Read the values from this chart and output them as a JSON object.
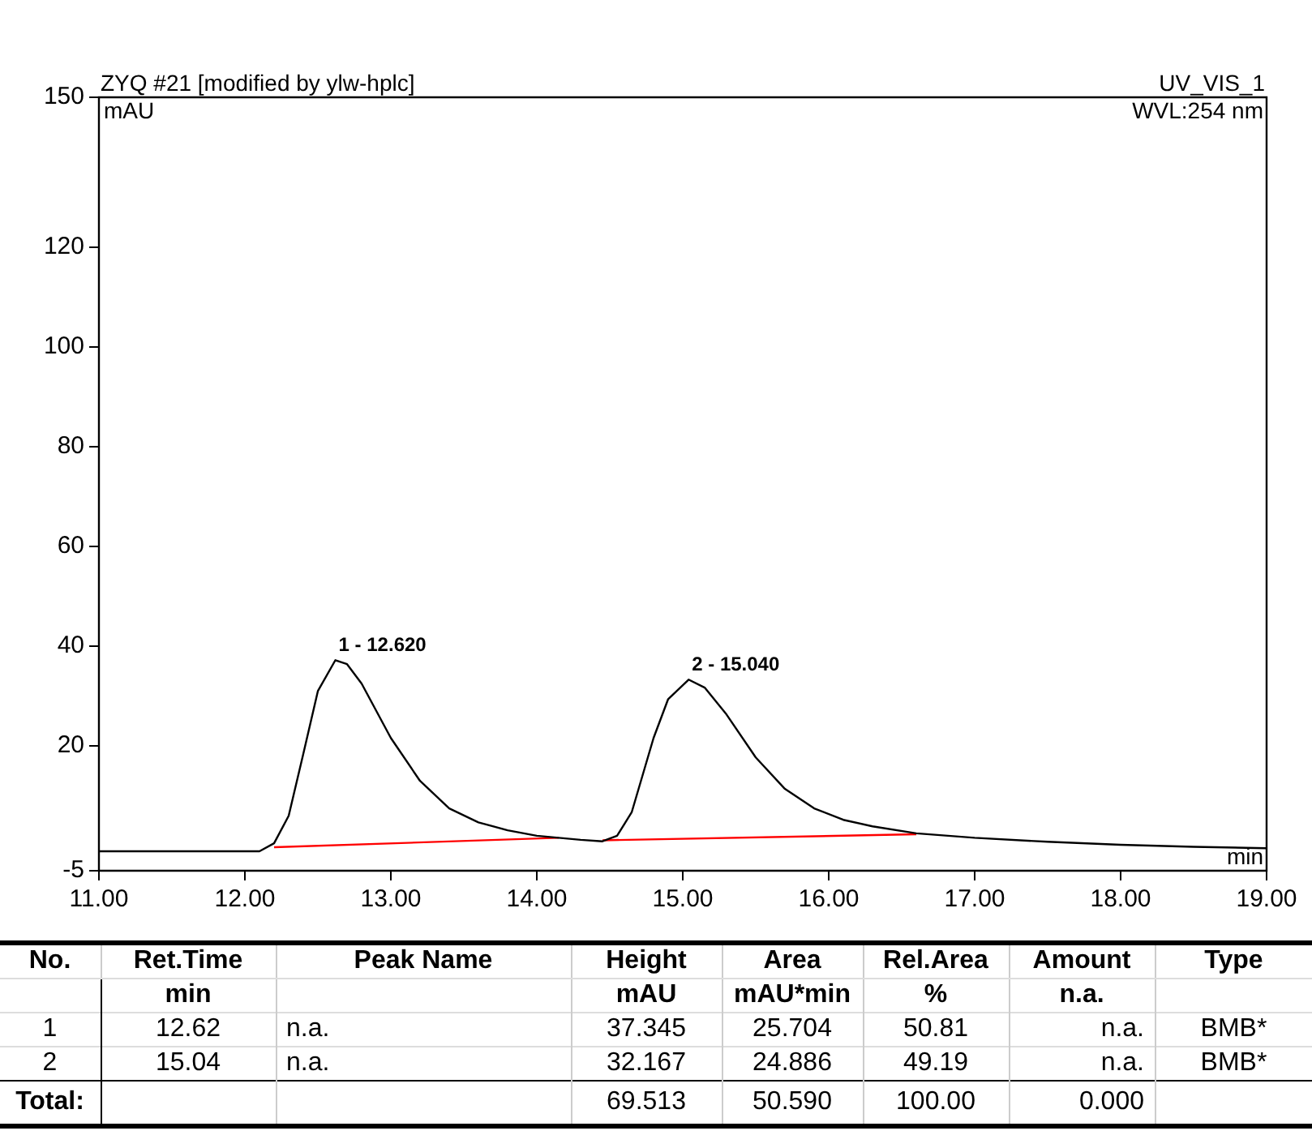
{
  "chart_data": [
    {
      "type": "line",
      "title": "ZYQ #21 [modified by ylw-hplc]",
      "subtitle": "UV_VIS_1",
      "ylabel": "mAU",
      "xlabel": "min",
      "annotations": [
        "WVL:254 nm",
        {
          "text": "1 - 12.620",
          "x": 12.62,
          "y": 37.2
        },
        {
          "text": "2 - 15.040",
          "x": 15.04,
          "y": 33.3
        }
      ],
      "xlim": [
        11,
        19
      ],
      "ylim": [
        -5,
        150
      ],
      "xticks": [
        {
          "value": 11,
          "label": "11.00"
        },
        {
          "value": 12,
          "label": "12.00"
        },
        {
          "value": 13,
          "label": "13.00"
        },
        {
          "value": 14,
          "label": "14.00"
        },
        {
          "value": 15,
          "label": "15.00"
        },
        {
          "value": 16,
          "label": "16.00"
        },
        {
          "value": 17,
          "label": "17.00"
        },
        {
          "value": 18,
          "label": "18.00"
        },
        {
          "value": 19,
          "label": "19.00"
        }
      ],
      "yticks": [
        -5,
        20,
        40,
        60,
        80,
        100,
        120,
        150
      ],
      "grid": false,
      "legend": false,
      "marker": "none",
      "line_style": "solid",
      "series": [
        {
          "color": "#000000",
          "x": [
            11,
            12.1,
            12.2,
            12.3,
            12.4,
            12.5,
            12.62,
            12.7,
            12.8,
            13,
            13.2,
            13.4,
            13.6,
            13.8,
            14,
            14.3,
            14.45,
            14.55,
            14.65,
            14.8,
            14.9,
            15.04,
            15.15,
            15.3,
            15.5,
            15.7,
            15.9,
            16.1,
            16.3,
            16.6,
            17,
            17.5,
            18,
            18.5,
            19
          ],
          "values": [
            -1.1,
            -1.1,
            0.5,
            6,
            18.4,
            31,
            37.2,
            36.4,
            32.5,
            21.6,
            13,
            7.5,
            4.7,
            3.1,
            2,
            1.2,
            0.9,
            2,
            6.7,
            21.6,
            29.4,
            33.3,
            31.7,
            26.3,
            17.7,
            11.4,
            7.5,
            5.2,
            3.9,
            2.5,
            1.6,
            0.8,
            0.2,
            -0.2,
            -0.5
          ]
        },
        {
          "color": "#ff0000",
          "x": [
            12.2,
            14.15
          ],
          "values": [
            -0.3,
            1.6
          ]
        },
        {
          "color": "#ff0000",
          "x": [
            14.45,
            16.6
          ],
          "values": [
            1.1,
            2.3
          ]
        }
      ]
    },
    {
      "type": "other",
      "categories": [
        "No.",
        "Ret.Time",
        "Peak Name",
        "Height",
        "Area",
        "Rel.Area",
        "Amount",
        "Type"
      ],
      "cell_labels": [
        [
          null,
          "min",
          null,
          "mAU",
          "mAU*min",
          "%",
          "n.a.",
          null
        ],
        [
          "1",
          "12.62",
          "n.a.",
          "37.345",
          "25.704",
          "50.81",
          "n.a.",
          "BMB*"
        ],
        [
          "2",
          "15.04",
          "n.a.",
          "32.167",
          "24.886",
          "49.19",
          "n.a.",
          "BMB*"
        ],
        [
          "Total:",
          null,
          null,
          "69.513",
          "50.590",
          "100.00",
          "0.000",
          null
        ]
      ]
    }
  ]
}
